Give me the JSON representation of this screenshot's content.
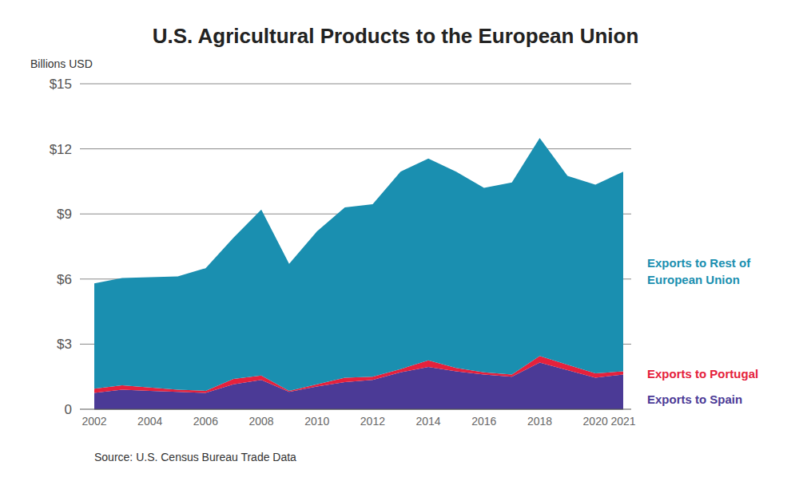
{
  "chart_data": {
    "type": "area",
    "stacked": true,
    "title": "U.S. Agricultural Products to the European Union",
    "y_label": "Billions USD",
    "source": "Source: U.S. Census Bureau Trade Data",
    "x": [
      2002,
      2003,
      2004,
      2005,
      2006,
      2007,
      2008,
      2009,
      2010,
      2011,
      2012,
      2013,
      2014,
      2015,
      2016,
      2017,
      2018,
      2019,
      2020,
      2021
    ],
    "xlim": [
      2002,
      2021
    ],
    "xticks": [
      2002,
      2004,
      2006,
      2008,
      2010,
      2012,
      2014,
      2016,
      2018,
      2020,
      2021
    ],
    "ylim": [
      0,
      15
    ],
    "yticks": [
      0,
      {
        "value": 3,
        "label": "$3"
      },
      {
        "value": 6,
        "label": "$6"
      },
      {
        "value": 9,
        "label": "$9"
      },
      {
        "value": 12,
        "label": "$12"
      },
      {
        "value": 15,
        "label": "$15"
      }
    ],
    "grid": true,
    "legend": "right",
    "series": [
      {
        "name": "Exports to Spain",
        "color": "#4b3a96",
        "values": [
          0.75,
          0.9,
          0.85,
          0.8,
          0.75,
          1.15,
          1.35,
          0.8,
          1.05,
          1.25,
          1.35,
          1.7,
          1.95,
          1.75,
          1.6,
          1.5,
          2.15,
          1.8,
          1.45,
          1.6
        ]
      },
      {
        "name": "Exports to Portugal",
        "color": "#e5213c",
        "values": [
          0.2,
          0.2,
          0.15,
          0.1,
          0.1,
          0.25,
          0.2,
          0.05,
          0.1,
          0.2,
          0.15,
          0.15,
          0.3,
          0.15,
          0.1,
          0.1,
          0.3,
          0.25,
          0.2,
          0.15
        ]
      },
      {
        "name": "Exports to Rest of European Union",
        "color": "#1a8fb0",
        "values": [
          4.85,
          4.95,
          5.08,
          5.22,
          5.65,
          6.5,
          7.65,
          5.85,
          7.05,
          7.85,
          7.95,
          9.1,
          9.3,
          9.05,
          8.5,
          8.85,
          10.05,
          8.7,
          8.7,
          9.2
        ]
      }
    ]
  }
}
